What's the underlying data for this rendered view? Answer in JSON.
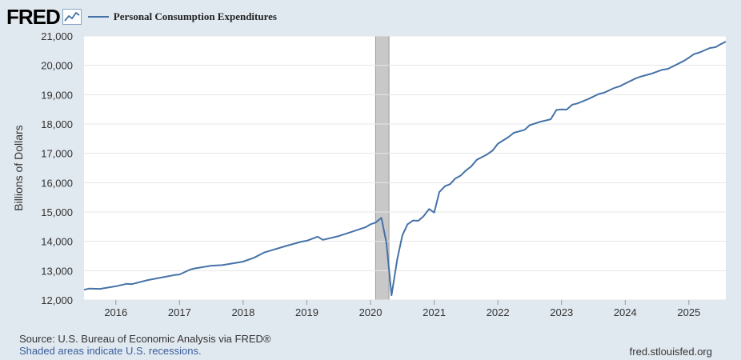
{
  "header": {
    "logo_text": "FRED",
    "series_label": "Personal Consumption Expenditures"
  },
  "footer": {
    "source": "Source: U.S. Bureau of Economic Analysis via FRED®",
    "recessions": "Shaded areas indicate U.S. recessions.",
    "site": "fred.stlouisfed.org"
  },
  "colors": {
    "line": "#4572a7",
    "recession": "#c8c8c8",
    "background": "#e1e9f0",
    "plot": "#ffffff"
  },
  "chart_data": {
    "type": "line",
    "title": "Personal Consumption Expenditures",
    "xlabel": "",
    "ylabel": "Billions of Dollars",
    "xlim": [
      2015.5,
      2025.58
    ],
    "ylim": [
      12000,
      21000
    ],
    "x_ticks": [
      2016,
      2017,
      2018,
      2019,
      2020,
      2021,
      2022,
      2023,
      2024,
      2025
    ],
    "x_tick_labels": [
      "2016",
      "2017",
      "2018",
      "2019",
      "2020",
      "2021",
      "2022",
      "2023",
      "2024",
      "2025"
    ],
    "y_ticks": [
      12000,
      13000,
      14000,
      15000,
      16000,
      17000,
      18000,
      19000,
      20000,
      21000
    ],
    "y_tick_labels": [
      "12,000",
      "13,000",
      "14,000",
      "15,000",
      "16,000",
      "17,000",
      "18,000",
      "19,000",
      "20,000",
      "21,000"
    ],
    "grid": true,
    "recessions": [
      {
        "start": 2020.08,
        "end": 2020.29
      }
    ],
    "series": [
      {
        "name": "Personal Consumption Expenditures",
        "x": [
          2015.5,
          2015.58,
          2015.75,
          2015.92,
          2016.0,
          2016.17,
          2016.25,
          2016.5,
          2016.75,
          2016.92,
          2017.0,
          2017.17,
          2017.25,
          2017.5,
          2017.67,
          2017.92,
          2018.0,
          2018.17,
          2018.33,
          2018.5,
          2018.67,
          2018.92,
          2019.0,
          2019.17,
          2019.25,
          2019.5,
          2019.67,
          2019.92,
          2020.0,
          2020.08,
          2020.17,
          2020.25,
          2020.33,
          2020.42,
          2020.5,
          2020.58,
          2020.67,
          2020.75,
          2020.83,
          2020.92,
          2021.0,
          2021.08,
          2021.17,
          2021.25,
          2021.33,
          2021.42,
          2021.5,
          2021.58,
          2021.67,
          2021.75,
          2021.83,
          2021.92,
          2022.0,
          2022.17,
          2022.25,
          2022.42,
          2022.5,
          2022.67,
          2022.83,
          2022.92,
          2023.0,
          2023.08,
          2023.17,
          2023.25,
          2023.42,
          2023.58,
          2023.67,
          2023.83,
          2023.92,
          2024.0,
          2024.17,
          2024.25,
          2024.42,
          2024.58,
          2024.67,
          2024.83,
          2024.92,
          2025.0,
          2025.08,
          2025.17,
          2025.33,
          2025.42,
          2025.5,
          2025.58
        ],
        "values": [
          12350,
          12390,
          12380,
          12440,
          12470,
          12550,
          12540,
          12680,
          12780,
          12850,
          12870,
          13040,
          13080,
          13170,
          13190,
          13280,
          13310,
          13440,
          13620,
          13730,
          13840,
          13990,
          14020,
          14160,
          14050,
          14180,
          14300,
          14480,
          14580,
          14640,
          14800,
          13950,
          12160,
          13400,
          14200,
          14580,
          14710,
          14700,
          14850,
          15100,
          14980,
          15680,
          15880,
          15950,
          16140,
          16250,
          16420,
          16550,
          16780,
          16870,
          16960,
          17100,
          17330,
          17560,
          17700,
          17800,
          17960,
          18080,
          18160,
          18480,
          18500,
          18490,
          18660,
          18700,
          18850,
          19020,
          19070,
          19230,
          19290,
          19380,
          19560,
          19620,
          19720,
          19850,
          19880,
          20050,
          20150,
          20260,
          20380,
          20440,
          20590,
          20620,
          20720,
          20810
        ]
      }
    ]
  }
}
